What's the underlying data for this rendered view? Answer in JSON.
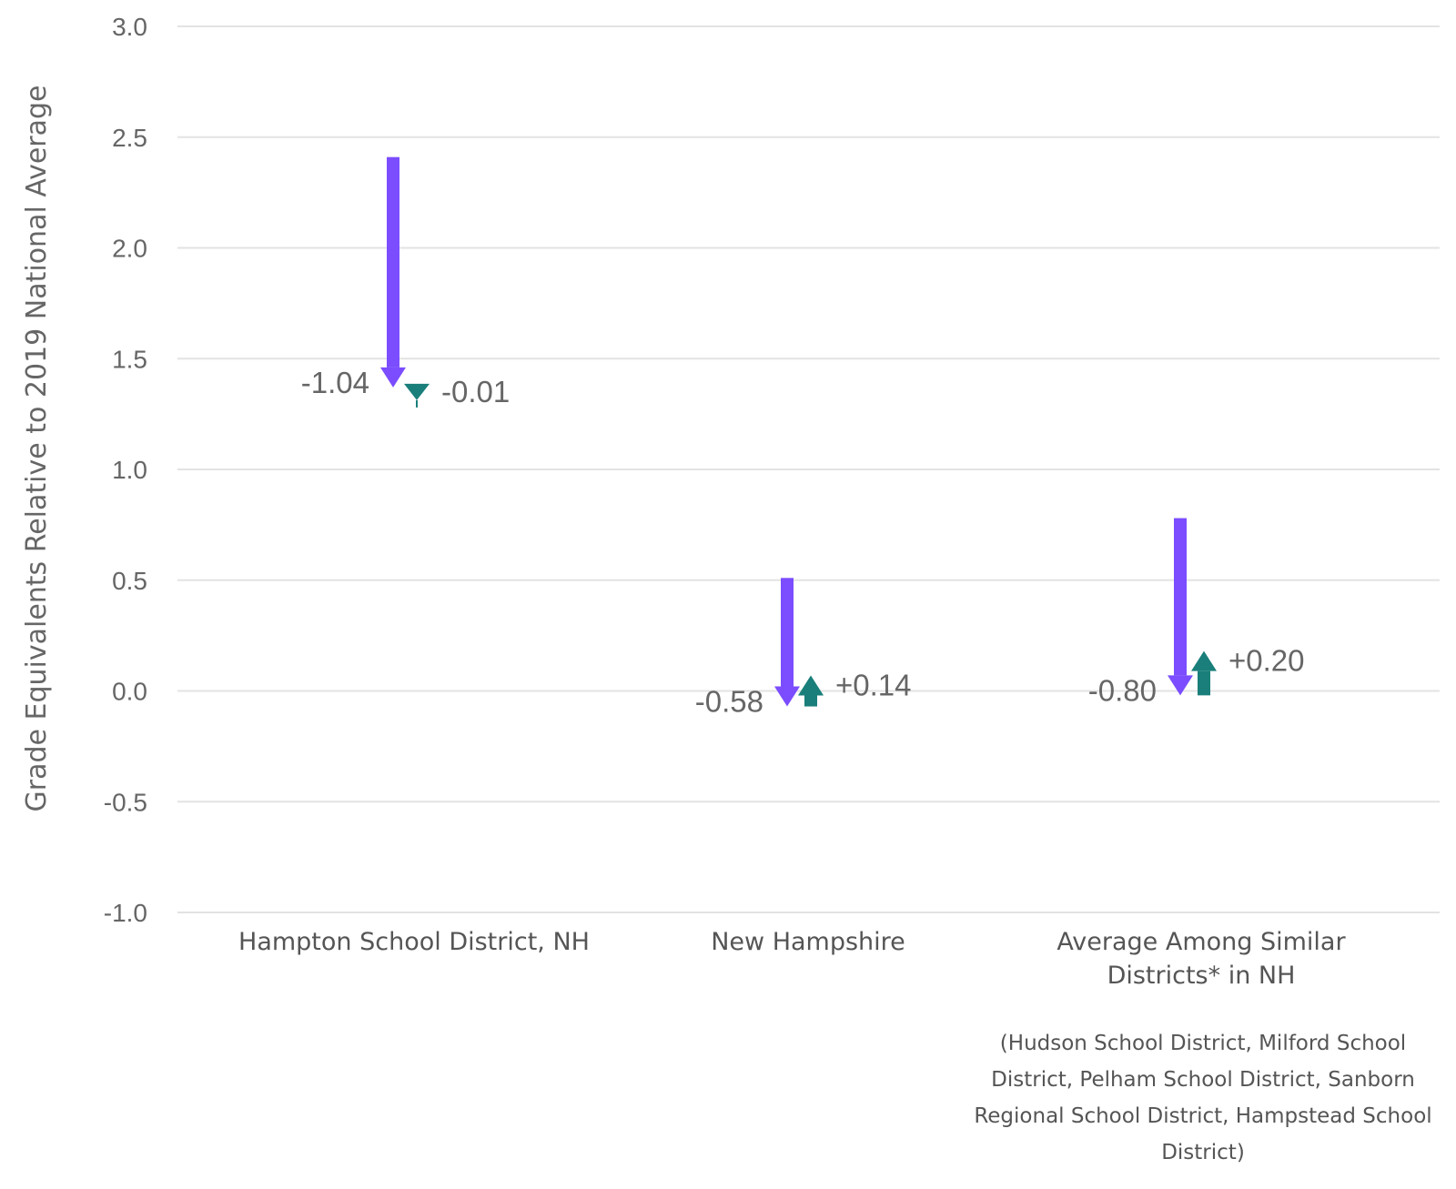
{
  "chart_data": {
    "type": "arrow",
    "title": "",
    "xlabel": "",
    "ylabel": "Grade Equivalents Relative to 2019 National Average",
    "ylim": [
      -1.0,
      3.0
    ],
    "yticks": [
      "3.0",
      "2.5",
      "2.0",
      "1.5",
      "1.0",
      "0.5",
      "0.0",
      "-0.5",
      "-1.0"
    ],
    "grid": true,
    "categories": [
      {
        "lines": [
          "Hampton School District, NH"
        ]
      },
      {
        "lines": [
          "New Hampshire"
        ]
      },
      {
        "lines": [
          "Average Among Similar",
          "Districts* in NH"
        ]
      }
    ],
    "footnote_lines": [
      "(Hudson School District, Milford School",
      "District, Pelham School District, Sanborn",
      "Regional School District, Hampstead School",
      "District)"
    ],
    "series": [
      {
        "color": "#7b4dff",
        "start": [
          2.41,
          0.51,
          0.78
        ],
        "change": [
          -1.04,
          -0.58,
          -0.8
        ],
        "labels": [
          "-1.04",
          "-0.58",
          "-0.80"
        ]
      },
      {
        "color": "#1a7f7a",
        "start": [
          1.37,
          -0.07,
          -0.02
        ],
        "change": [
          -0.01,
          0.14,
          0.2
        ],
        "labels": [
          "-0.01",
          "+0.14",
          "+0.20"
        ]
      }
    ]
  }
}
